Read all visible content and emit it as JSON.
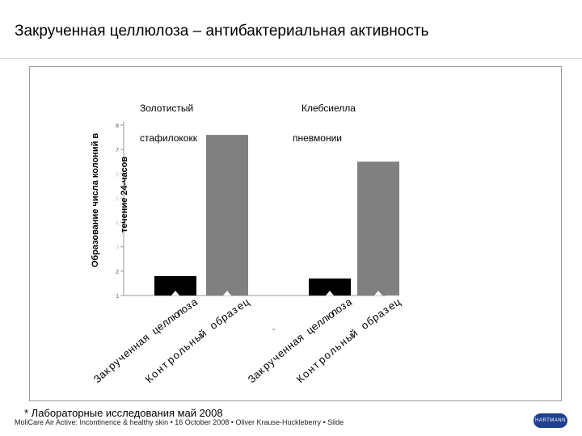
{
  "slide": {
    "title": "Закрученная целлюлоза – антибактериальная активность",
    "footnote": "* Лабораторные исследования май 2008",
    "footer": "MoliCare Air Active: Incontinence & healthy skin • 16 October 2008 • Oliver Krause-Huckleberry • Slide",
    "logo_text": "HARTMANN"
  },
  "chart_data": {
    "type": "bar",
    "ylabel_line1": "Образование числа колоний в",
    "ylabel_line2": "течение 24-часов",
    "ylim": [
      1,
      8
    ],
    "yticks": [
      "1",
      "2",
      "3",
      "4",
      "5",
      "6",
      "7",
      "8"
    ],
    "labeled_ticks": [
      "1",
      "2",
      "7",
      "8"
    ],
    "groups": [
      {
        "name_line1": "Золотистый",
        "name_line2": "стафилококк",
        "bars": [
          {
            "label": "Закрученная целлюлоза",
            "value": 1.8,
            "color": "#000000"
          },
          {
            "label": "Контрольный образец",
            "value": 7.6,
            "color": "#808080"
          }
        ]
      },
      {
        "name_line1": "Клебсиелла",
        "name_line2": "пневмонии",
        "bars": [
          {
            "label": "Закрученная целлюлоза",
            "value": 1.7,
            "color": "#000000"
          },
          {
            "label": "Контрольный образец",
            "value": 6.5,
            "color": "#808080"
          }
        ]
      }
    ]
  }
}
